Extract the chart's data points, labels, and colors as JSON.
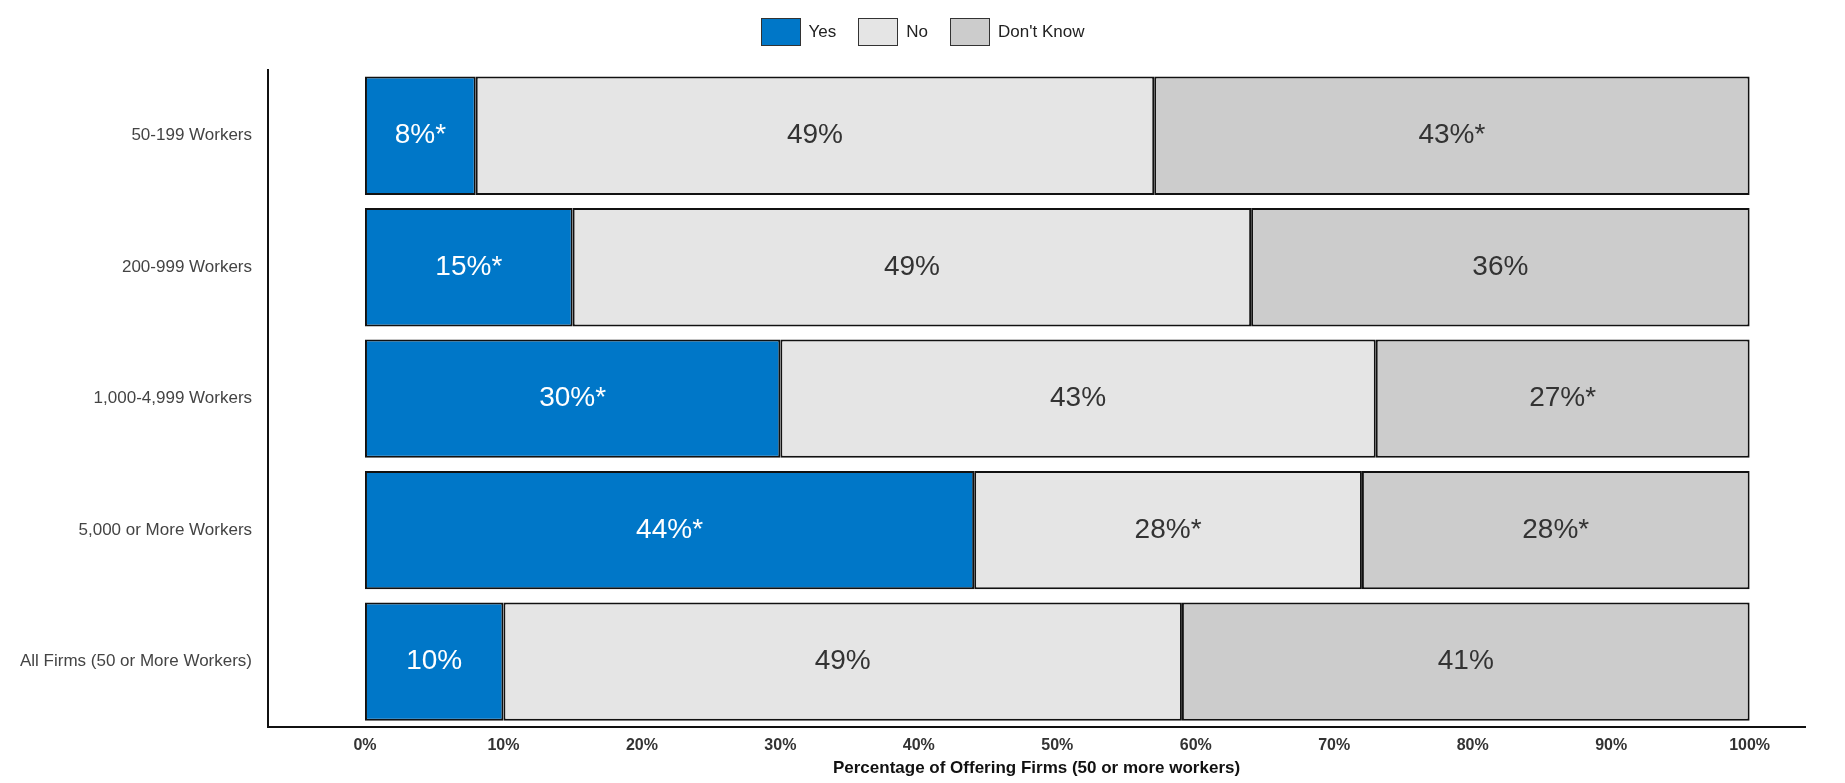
{
  "chart_data": {
    "type": "bar",
    "orientation": "horizontal",
    "stacked": true,
    "xlabel": "Percentage of Offering Firms (50 or more workers)",
    "categories": [
      "50-199 Workers",
      "200-999 Workers",
      "1,000-4,999 Workers",
      "5,000 or More Workers",
      "All Firms (50 or More Workers)"
    ],
    "series": [
      {
        "name": "Yes",
        "color": "#0077c8",
        "values": [
          8,
          15,
          30,
          44,
          10
        ],
        "value_labels": [
          "8%*",
          "15%*",
          "30%*",
          "44%*",
          "10%"
        ]
      },
      {
        "name": "No",
        "color": "#e5e5e5",
        "values": [
          49,
          49,
          43,
          28,
          49
        ],
        "value_labels": [
          "49%",
          "49%",
          "43%",
          "28%*",
          "49%"
        ]
      },
      {
        "name": "Don't Know",
        "color": "#cccccc",
        "values": [
          43,
          36,
          27,
          28,
          41
        ],
        "value_labels": [
          "43%*",
          "36%",
          "27%*",
          "28%*",
          "41%"
        ]
      }
    ],
    "xlim": [
      -7,
      104
    ],
    "xticks": [
      {
        "value": 0,
        "label": "0%"
      },
      {
        "value": 10,
        "label": "10%"
      },
      {
        "value": 20,
        "label": "20%"
      },
      {
        "value": 30,
        "label": "30%"
      },
      {
        "value": 40,
        "label": "40%"
      },
      {
        "value": 50,
        "label": "50%"
      },
      {
        "value": 60,
        "label": "60%"
      },
      {
        "value": 70,
        "label": "70%"
      },
      {
        "value": 80,
        "label": "80%"
      },
      {
        "value": 90,
        "label": "90%"
      },
      {
        "value": 100,
        "label": "100%"
      }
    ],
    "grid": false,
    "legend": "top"
  }
}
